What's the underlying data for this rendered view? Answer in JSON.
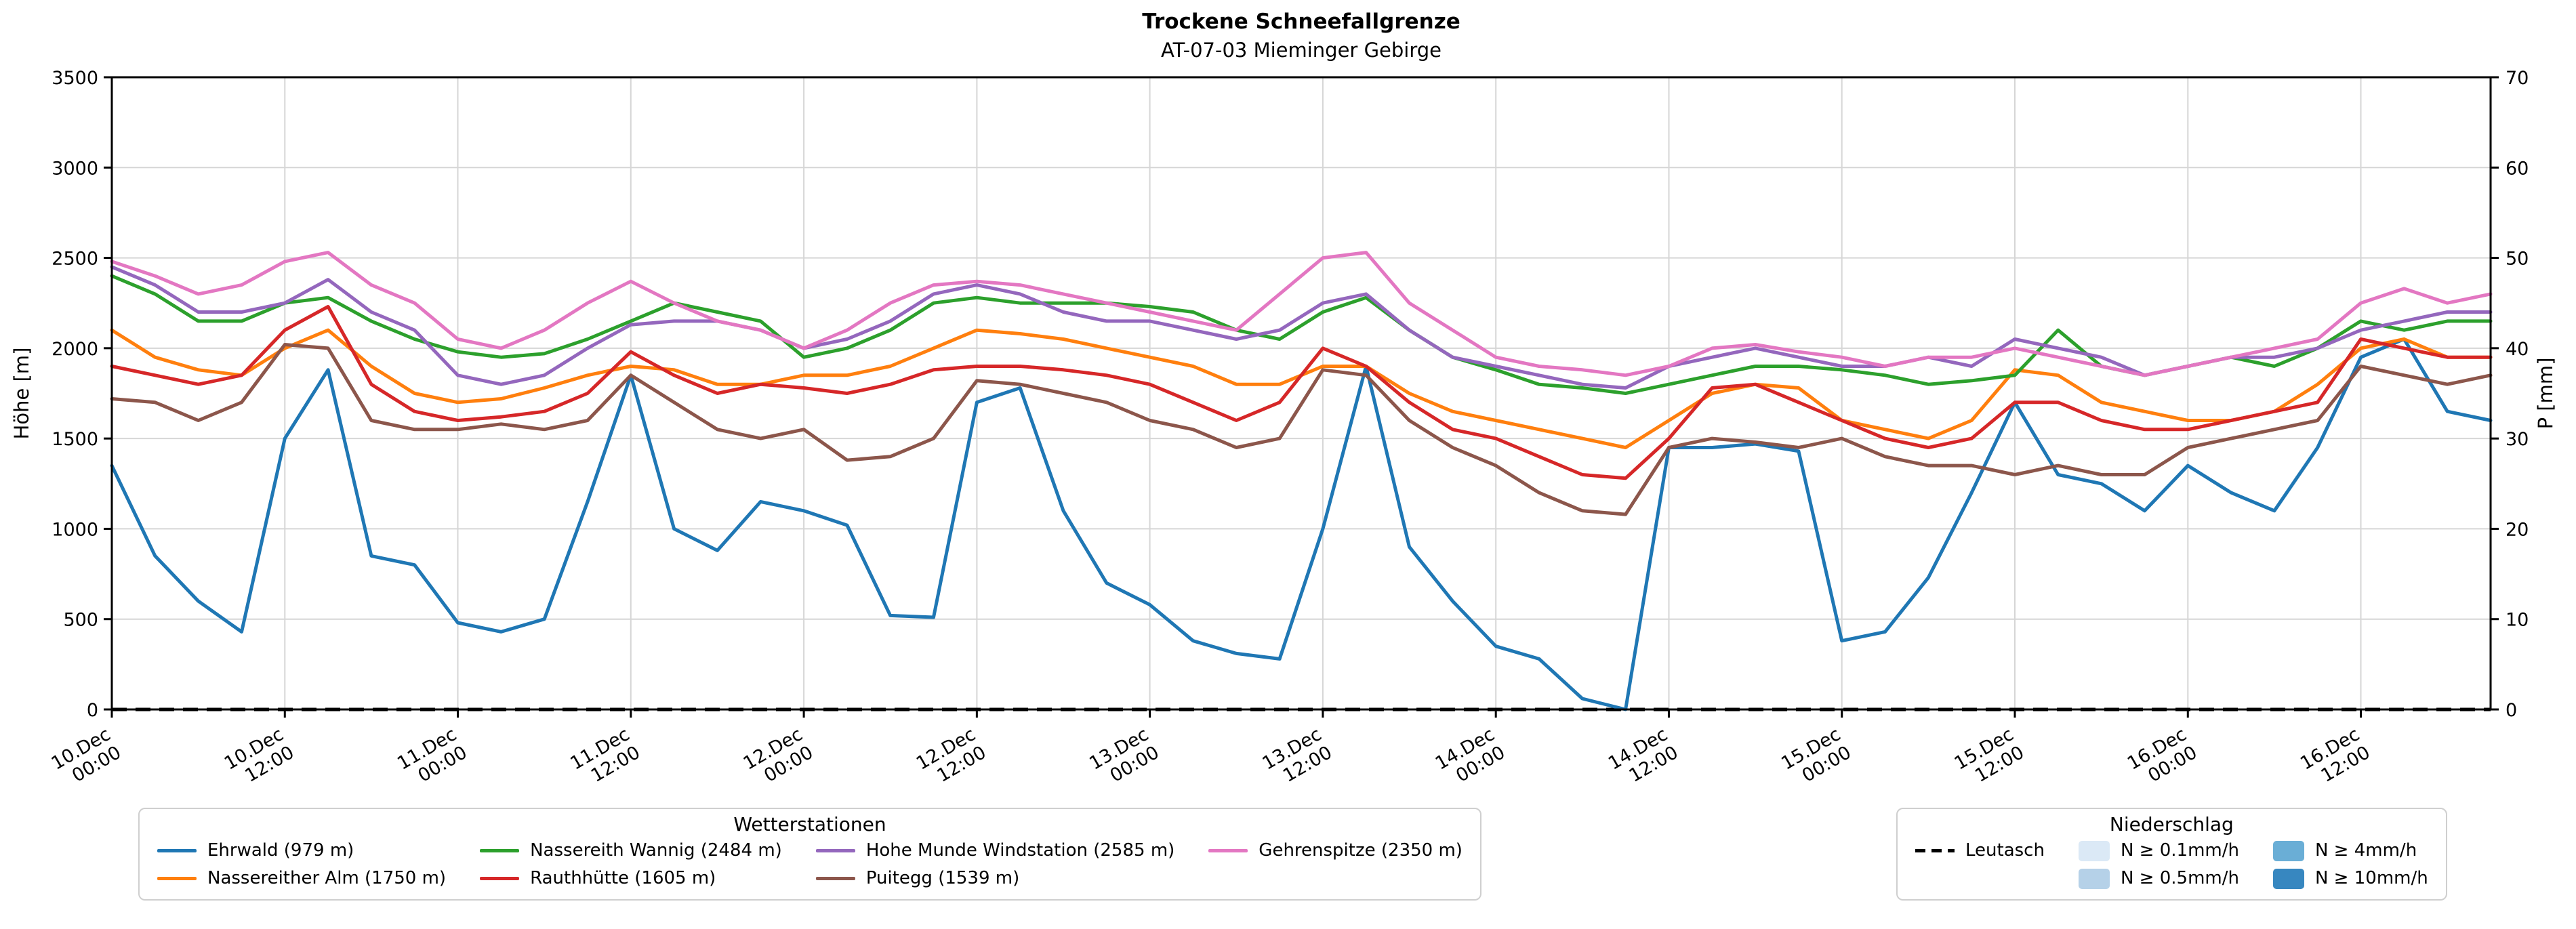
{
  "chart_data": {
    "type": "line",
    "title": "Trockene Schneefallgrenze",
    "subtitle": "AT-07-03 Mieminger Gebirge",
    "ylabel_left": "Höhe [m]",
    "ylabel_right": "P [mm]",
    "ylim": [
      0,
      3500
    ],
    "ylim_right": [
      0,
      70
    ],
    "y_left_ticks": [
      0,
      500,
      1000,
      1500,
      2000,
      2500,
      3000,
      3500
    ],
    "y_right_ticks": [
      0,
      10,
      20,
      30,
      40,
      50,
      60,
      70
    ],
    "grid": true,
    "x_range_hours": [
      0,
      165
    ],
    "x_ticks": [
      {
        "hour": 0,
        "date": "10.Dec",
        "time": "00:00"
      },
      {
        "hour": 12,
        "date": "10.Dec",
        "time": "12:00"
      },
      {
        "hour": 24,
        "date": "11.Dec",
        "time": "00:00"
      },
      {
        "hour": 36,
        "date": "11.Dec",
        "time": "12:00"
      },
      {
        "hour": 48,
        "date": "12.Dec",
        "time": "00:00"
      },
      {
        "hour": 60,
        "date": "12.Dec",
        "time": "12:00"
      },
      {
        "hour": 72,
        "date": "13.Dec",
        "time": "00:00"
      },
      {
        "hour": 84,
        "date": "13.Dec",
        "time": "12:00"
      },
      {
        "hour": 96,
        "date": "14.Dec",
        "time": "00:00"
      },
      {
        "hour": 108,
        "date": "14.Dec",
        "time": "12:00"
      },
      {
        "hour": 120,
        "date": "15.Dec",
        "time": "00:00"
      },
      {
        "hour": 132,
        "date": "15.Dec",
        "time": "12:00"
      },
      {
        "hour": 144,
        "date": "16.Dec",
        "time": "00:00"
      },
      {
        "hour": 156,
        "date": "16.Dec",
        "time": "12:00"
      }
    ],
    "x_hours": [
      0,
      3,
      6,
      9,
      12,
      15,
      18,
      21,
      24,
      27,
      30,
      33,
      36,
      39,
      42,
      45,
      48,
      51,
      54,
      57,
      60,
      63,
      66,
      69,
      72,
      75,
      78,
      81,
      84,
      87,
      90,
      93,
      96,
      99,
      102,
      105,
      108,
      111,
      114,
      117,
      120,
      123,
      126,
      129,
      132,
      135,
      138,
      141,
      144,
      147,
      150,
      153,
      156,
      159,
      162,
      165
    ],
    "series": [
      {
        "id": "ehrwald",
        "name": "Ehrwald (979 m)",
        "color": "#1f77b4",
        "values": [
          1350,
          850,
          600,
          430,
          1500,
          1880,
          850,
          800,
          480,
          430,
          500,
          1150,
          1850,
          1000,
          880,
          1150,
          1100,
          1020,
          520,
          510,
          1700,
          1780,
          1100,
          700,
          580,
          380,
          310,
          280,
          1000,
          1900,
          900,
          600,
          350,
          280,
          60,
          0,
          1450,
          1450,
          1470,
          1430,
          380,
          430,
          730,
          1200,
          1700,
          1300,
          1250,
          1100,
          1350,
          1200,
          1100,
          1450,
          1950,
          2050,
          1650,
          1600
        ]
      },
      {
        "id": "nassereither-alm",
        "name": "Nassereither Alm (1750 m)",
        "color": "#ff7f0e",
        "values": [
          2100,
          1950,
          1880,
          1850,
          2000,
          2100,
          1900,
          1750,
          1700,
          1720,
          1780,
          1850,
          1900,
          1880,
          1800,
          1800,
          1850,
          1850,
          1900,
          2000,
          2100,
          2080,
          2050,
          2000,
          1950,
          1900,
          1800,
          1800,
          1900,
          1900,
          1750,
          1650,
          1600,
          1550,
          1500,
          1450,
          1600,
          1750,
          1800,
          1780,
          1600,
          1550,
          1500,
          1600,
          1880,
          1850,
          1700,
          1650,
          1600,
          1600,
          1650,
          1800,
          2000,
          2050,
          1950,
          1950
        ]
      },
      {
        "id": "nassereith-wannig",
        "name": "Nassereith Wannig (2484 m)",
        "color": "#2ca02c",
        "values": [
          2400,
          2300,
          2150,
          2150,
          2250,
          2280,
          2150,
          2050,
          1980,
          1950,
          1970,
          2050,
          2150,
          2250,
          2200,
          2150,
          1950,
          2000,
          2100,
          2250,
          2280,
          2250,
          2250,
          2250,
          2230,
          2200,
          2100,
          2050,
          2200,
          2280,
          2100,
          1950,
          1880,
          1800,
          1780,
          1750,
          1800,
          1850,
          1900,
          1900,
          1880,
          1850,
          1800,
          1820,
          1850,
          2100,
          1900,
          1850,
          1900,
          1950,
          1900,
          2000,
          2150,
          2100,
          2150,
          2150
        ]
      },
      {
        "id": "rauthhuette",
        "name": "Rauthhütte (1605 m)",
        "color": "#d62728",
        "values": [
          1900,
          1850,
          1800,
          1850,
          2100,
          2230,
          1800,
          1650,
          1600,
          1620,
          1650,
          1750,
          1980,
          1850,
          1750,
          1800,
          1780,
          1750,
          1800,
          1880,
          1900,
          1900,
          1880,
          1850,
          1800,
          1700,
          1600,
          1700,
          2000,
          1900,
          1700,
          1550,
          1500,
          1400,
          1300,
          1280,
          1500,
          1780,
          1800,
          1700,
          1600,
          1500,
          1450,
          1500,
          1700,
          1700,
          1600,
          1550,
          1550,
          1600,
          1650,
          1700,
          2050,
          2000,
          1950,
          1950
        ]
      },
      {
        "id": "hohe-munde",
        "name": "Hohe Munde Windstation (2585 m)",
        "color": "#9467bd",
        "values": [
          2450,
          2350,
          2200,
          2200,
          2250,
          2380,
          2200,
          2100,
          1850,
          1800,
          1850,
          2000,
          2130,
          2150,
          2150,
          2100,
          2000,
          2050,
          2150,
          2300,
          2350,
          2300,
          2200,
          2150,
          2150,
          2100,
          2050,
          2100,
          2250,
          2300,
          2100,
          1950,
          1900,
          1850,
          1800,
          1780,
          1900,
          1950,
          2000,
          1950,
          1900,
          1900,
          1950,
          1900,
          2050,
          2000,
          1950,
          1850,
          1900,
          1950,
          1950,
          2000,
          2100,
          2150,
          2200,
          2200
        ]
      },
      {
        "id": "puitegg",
        "name": "Puitegg (1539 m)",
        "color": "#8c564b",
        "values": [
          1720,
          1700,
          1600,
          1700,
          2020,
          2000,
          1600,
          1550,
          1550,
          1580,
          1550,
          1600,
          1850,
          1700,
          1550,
          1500,
          1550,
          1380,
          1400,
          1500,
          1820,
          1800,
          1750,
          1700,
          1600,
          1550,
          1450,
          1500,
          1880,
          1850,
          1600,
          1450,
          1350,
          1200,
          1100,
          1080,
          1450,
          1500,
          1480,
          1450,
          1500,
          1400,
          1350,
          1350,
          1300,
          1350,
          1300,
          1300,
          1450,
          1500,
          1550,
          1600,
          1900,
          1850,
          1800,
          1850
        ]
      },
      {
        "id": "gehrenspitze",
        "name": "Gehrenspitze (2350 m)",
        "color": "#e377c2",
        "values": [
          2480,
          2400,
          2300,
          2350,
          2480,
          2530,
          2350,
          2250,
          2050,
          2000,
          2100,
          2250,
          2370,
          2250,
          2150,
          2100,
          2000,
          2100,
          2250,
          2350,
          2370,
          2350,
          2300,
          2250,
          2200,
          2150,
          2100,
          2300,
          2500,
          2530,
          2250,
          2100,
          1950,
          1900,
          1880,
          1850,
          1900,
          2000,
          2020,
          1980,
          1950,
          1900,
          1950,
          1950,
          2000,
          1950,
          1900,
          1850,
          1900,
          1950,
          2000,
          2050,
          2250,
          2330,
          2250,
          2300
        ]
      }
    ],
    "baseline": {
      "name": "Leutasch",
      "color": "#000000",
      "style": "dashed",
      "value": 0
    }
  },
  "legends": {
    "stations": {
      "title": "Wetterstationen",
      "columns": 4
    },
    "precip": {
      "title": "Niederschlag",
      "items": [
        {
          "id": "leutasch",
          "label": "Leutasch",
          "marker": "dashed-line",
          "color": "#000000"
        },
        {
          "id": "n-0-1",
          "label": "N ≥ 0.1mm/h",
          "marker": "patch",
          "color": "#dbe9f6"
        },
        {
          "id": "n-0-5",
          "label": "N ≥ 0.5mm/h",
          "marker": "patch",
          "color": "#b5d1e8"
        },
        {
          "id": "n-4",
          "label": "N ≥ 4mm/h",
          "marker": "patch",
          "color": "#6aaed6"
        },
        {
          "id": "n-10",
          "label": "N ≥ 10mm/h",
          "marker": "patch",
          "color": "#3787c0"
        }
      ]
    }
  }
}
